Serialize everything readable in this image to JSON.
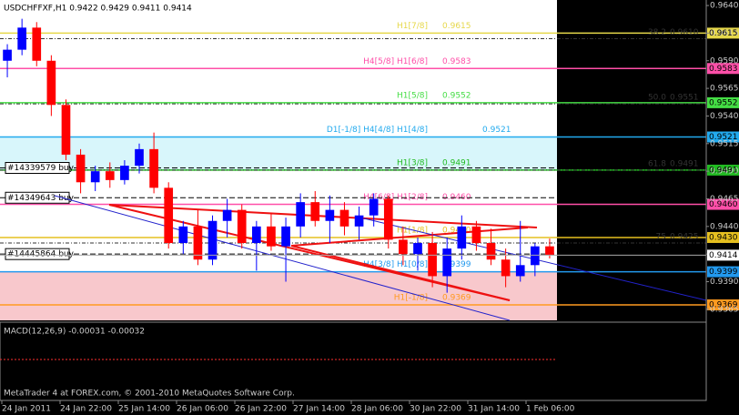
{
  "chart_data": {
    "type": "candlestick",
    "title": "USDCHFFXF,H1  0.9422 0.9429 0.9411 0.9414",
    "indicator": "MACD(12,26,9) -0.00031 -0.00032",
    "footer": "MetaTrader 4 at FOREX.com, © 2001-2010 MetaQuotes Software Corp.",
    "ylim": [
      0.9355,
      0.9645
    ],
    "yticks": [
      {
        "value": 0.964,
        "label": "0.9640"
      },
      0.9615,
      {
        "value": 0.959,
        "label": "0.9590"
      },
      0.9565,
      {
        "value": 0.954,
        "label": "0.9540"
      },
      0.9515,
      {
        "value": 0.949,
        "label": "0.9490"
      },
      0.9465,
      {
        "value": 0.944,
        "label": "0.9440"
      },
      0.9415,
      {
        "value": 0.939,
        "label": "0.9390"
      },
      0.9365
    ],
    "xticks": [
      "24 Jan 2011",
      "24 Jan 22:00",
      "25 Jan 14:00",
      "26 Jan 06:00",
      "26 Jan 22:00",
      "27 Jan 14:00",
      "28 Jan 06:00",
      "30 Jan 22:00",
      "31 Jan 14:00",
      "1 Feb 06:00"
    ],
    "up_color": "#0000ff",
    "down_color": "#ff0000",
    "open": [
      0.959,
      0.96,
      0.962,
      0.959,
      0.955,
      0.9505,
      0.948,
      0.949,
      0.9482,
      0.9495,
      0.951,
      0.9475,
      0.9425,
      0.944,
      0.941,
      0.9445,
      0.9455,
      0.9425,
      0.944,
      0.9422,
      0.944,
      0.9462,
      0.9445,
      0.9455,
      0.944,
      0.945,
      0.9465,
      0.9428,
      0.9415,
      0.9425,
      0.9395,
      0.942,
      0.944,
      0.9425,
      0.941,
      0.9395,
      0.9405,
      0.9422
    ],
    "high": [
      0.9605,
      0.9628,
      0.9625,
      0.9595,
      0.9555,
      0.951,
      0.9495,
      0.9498,
      0.95,
      0.9515,
      0.9525,
      0.948,
      0.9445,
      0.9455,
      0.945,
      0.9465,
      0.946,
      0.9445,
      0.9452,
      0.9448,
      0.947,
      0.9472,
      0.9468,
      0.9462,
      0.9458,
      0.947,
      0.9468,
      0.944,
      0.943,
      0.9435,
      0.943,
      0.945,
      0.9445,
      0.9438,
      0.942,
      0.9445,
      0.9425,
      0.9429
    ],
    "low": [
      0.9575,
      0.9595,
      0.9585,
      0.954,
      0.95,
      0.947,
      0.9472,
      0.9475,
      0.9478,
      0.9488,
      0.947,
      0.942,
      0.9415,
      0.9405,
      0.9405,
      0.943,
      0.942,
      0.94,
      0.9418,
      0.939,
      0.943,
      0.944,
      0.9425,
      0.9432,
      0.9428,
      0.944,
      0.942,
      0.9405,
      0.94,
      0.9385,
      0.938,
      0.941,
      0.9418,
      0.9405,
      0.9385,
      0.939,
      0.9395,
      0.9411
    ],
    "close": [
      0.96,
      0.962,
      0.959,
      0.955,
      0.9505,
      0.948,
      0.949,
      0.9482,
      0.9495,
      0.951,
      0.9475,
      0.9425,
      0.944,
      0.941,
      0.9445,
      0.9455,
      0.9425,
      0.944,
      0.9422,
      0.944,
      0.9462,
      0.9445,
      0.9455,
      0.944,
      0.945,
      0.9465,
      0.9428,
      0.9415,
      0.9425,
      0.9395,
      0.942,
      0.944,
      0.9425,
      0.941,
      0.9395,
      0.9405,
      0.9422,
      0.9414
    ],
    "last_price": 0.9414,
    "levels": [
      {
        "name": "H1[7/8]",
        "value": 0.9615,
        "color": "#e6d84a"
      },
      {
        "name": "H4[5/8] H1[6/8]",
        "value": 0.9583,
        "color": "#ff4fa8"
      },
      {
        "name": "H1[5/8]",
        "value": 0.9552,
        "color": "#44dd44"
      },
      {
        "name": "D1[-1/8] H4[4/8] H1[4/8]",
        "value": 0.9521,
        "color": "#22aaee"
      },
      {
        "name": "H1[3/8]",
        "value": 0.9491,
        "color": "#22bb22"
      },
      {
        "name": "H4[6/8] H1[2/8]",
        "value": 0.946,
        "value_label": "0.9460",
        "color": "#ff4fa8"
      },
      {
        "name": "H1[1/8]",
        "value": 0.943,
        "value_label": "0.9430",
        "color": "#e6c020"
      },
      {
        "name": "H4[3/8] H1[0/8]",
        "value": 0.9399,
        "color": "#2299ee"
      },
      {
        "name": "H1[-1/8]",
        "value": 0.9369,
        "color": "#ff9a20"
      }
    ],
    "fibs": [
      {
        "name": "38.2",
        "value": 0.961,
        "value_label": "0.9610"
      },
      {
        "name": "50.0",
        "value": 0.9551
      },
      {
        "name": "61.8",
        "value": 0.9491
      },
      {
        "name": "75",
        "value": 0.9425
      }
    ],
    "orders": [
      {
        "name": "#14339579 buy",
        "value": 0.9493
      },
      {
        "name": "#14349643 buy",
        "value": 0.9466
      },
      {
        "name": "#14445864 buy",
        "value": 0.9415
      }
    ]
  }
}
